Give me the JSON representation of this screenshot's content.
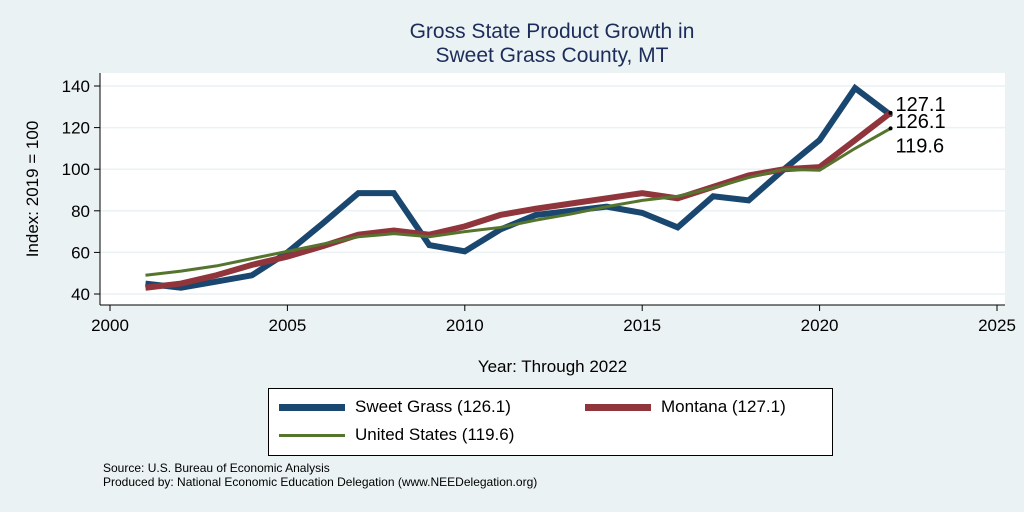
{
  "chart_data": {
    "type": "line",
    "title": "Gross State Product Growth in",
    "subtitle": "Sweet Grass County, MT",
    "xlabel": "Year: Through 2022",
    "ylabel": "Index: 2019 = 100",
    "xlim": [
      2000,
      2025
    ],
    "ylim": [
      40,
      140
    ],
    "xticks": [
      "2000",
      "2005",
      "2010",
      "2015",
      "2020",
      "2025"
    ],
    "yticks": [
      "40",
      "60",
      "80",
      "100",
      "120",
      "140"
    ],
    "grid": true,
    "legend_position": "bottom",
    "x": [
      2001,
      2002,
      2003,
      2004,
      2005,
      2006,
      2007,
      2008,
      2009,
      2010,
      2011,
      2012,
      2013,
      2014,
      2015,
      2016,
      2017,
      2018,
      2019,
      2020,
      2021,
      2022
    ],
    "series": [
      {
        "name": "Sweet Grass",
        "legend": "Sweet Grass  (126.1)",
        "color": "#1a476f",
        "width": 6,
        "end_label": "126.1",
        "values": [
          45,
          43,
          46,
          49,
          60,
          74,
          88.5,
          88.5,
          63.5,
          60.5,
          71,
          78,
          80,
          82,
          79,
          72,
          87,
          85,
          100,
          114,
          139,
          126.1
        ]
      },
      {
        "name": "Montana",
        "legend": "Montana (127.1)",
        "color": "#90353b",
        "width": 6,
        "end_label": "127.1",
        "values": [
          43,
          45,
          49,
          54,
          58,
          63,
          68.5,
          70.5,
          68.5,
          72.5,
          78,
          81,
          83.5,
          86,
          88.5,
          86,
          91.5,
          97,
          100,
          101,
          114,
          127.1
        ]
      },
      {
        "name": "United States",
        "legend": "United States (119.6)",
        "color": "#55752f",
        "width": 3,
        "end_label": "119.6",
        "values": [
          49,
          51,
          53.5,
          57,
          60.5,
          64,
          67.5,
          69,
          67.5,
          70,
          72,
          75.5,
          78.5,
          82,
          85,
          87,
          91,
          96,
          100,
          99.5,
          110,
          119.6
        ]
      }
    ]
  },
  "footer": {
    "source": "Source: U.S. Bureau of Economic Analysis",
    "produced": "Produced by: National Economic Education Delegation (www.NEEDelegation.org)"
  }
}
